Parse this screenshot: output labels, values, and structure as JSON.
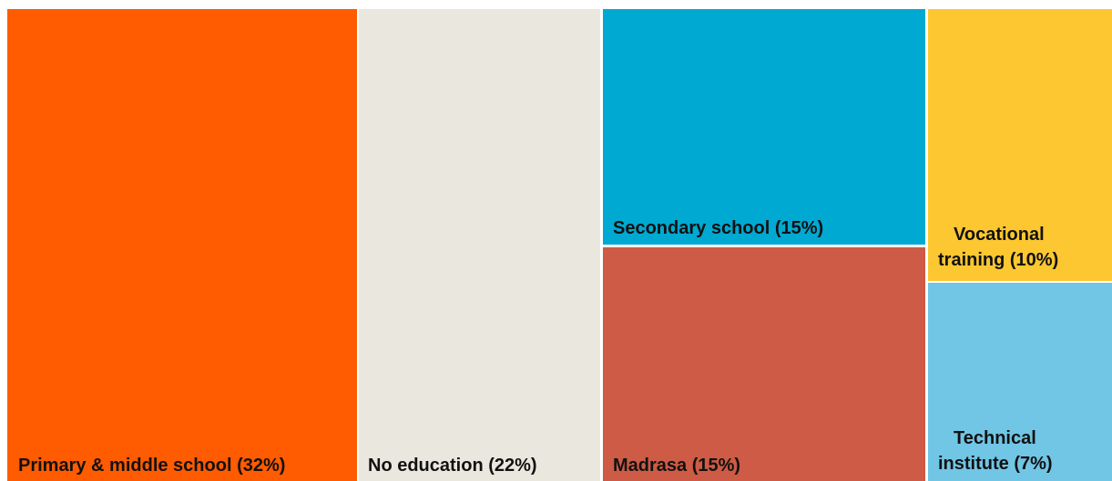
{
  "chart_data": {
    "type": "treemap",
    "title": "",
    "items": [
      {
        "label": "Primary & middle school (32%)",
        "category": "Primary & middle school",
        "value": 32,
        "color": "#ff5b00"
      },
      {
        "label": "No education (22%)",
        "category": "No education",
        "value": 22,
        "color": "#eae7de"
      },
      {
        "label": "Secondary school (15%)",
        "category": "Secondary school",
        "value": 15,
        "color": "#00a9d2"
      },
      {
        "label": "Madrasa (15%)",
        "category": "Madrasa",
        "value": 15,
        "color": "#cd5b45"
      },
      {
        "label_lines": [
          "Vocational",
          "training (10%)"
        ],
        "category": "Vocational training",
        "value": 10,
        "color": "#fcc730"
      },
      {
        "label_lines": [
          "Technical",
          "institute (7%)"
        ],
        "category": "Technical institute",
        "value": 7,
        "color": "#71c5e5"
      }
    ]
  }
}
